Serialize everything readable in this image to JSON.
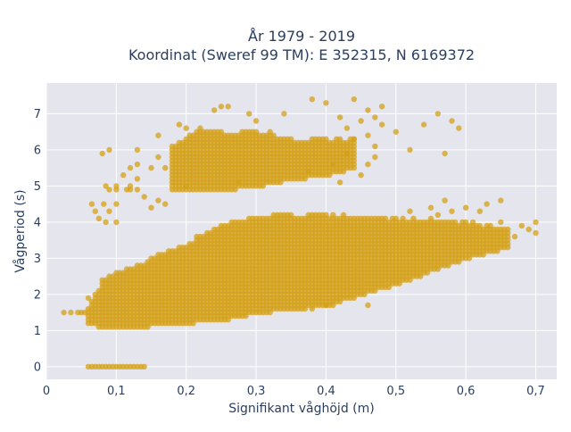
{
  "chart_data": {
    "type": "scatter",
    "title_line1": "År 1979 - 2019",
    "title_line2": "Koordinat (Sweref 99 TM): E 352315, N 6169372",
    "xlabel": "Signifikant våghöjd (m)",
    "ylabel": "Vågperiod (s)",
    "xlim": [
      0,
      0.73
    ],
    "ylim": [
      -0.35,
      7.85
    ],
    "x_ticks": [
      0,
      0.1,
      0.2,
      0.3,
      0.4,
      0.5,
      0.6,
      0.7
    ],
    "x_tick_labels": [
      "0",
      "0,1",
      "0,2",
      "0,3",
      "0,4",
      "0,5",
      "0,6",
      "0,7"
    ],
    "y_ticks": [
      0,
      1,
      2,
      3,
      4,
      5,
      6,
      7
    ],
    "y_tick_labels": [
      "0",
      "1",
      "2",
      "3",
      "4",
      "5",
      "6",
      "7"
    ],
    "grid": true,
    "marker_color": "#d4a017",
    "plot_bg": "#e5e5ee",
    "grid_color": "#ffffff",
    "x_step": 0.005,
    "main_band": {
      "lower": [
        [
          0.06,
          1.2
        ],
        [
          0.08,
          1.1
        ],
        [
          0.12,
          1.1
        ],
        [
          0.18,
          1.2
        ],
        [
          0.25,
          1.3
        ],
        [
          0.3,
          1.5
        ],
        [
          0.4,
          1.7
        ],
        [
          0.5,
          2.3
        ],
        [
          0.6,
          3.0
        ],
        [
          0.66,
          3.3
        ]
      ],
      "upper": [
        [
          0.06,
          1.6
        ],
        [
          0.08,
          2.4
        ],
        [
          0.1,
          2.6
        ],
        [
          0.15,
          3.0
        ],
        [
          0.2,
          3.4
        ],
        [
          0.25,
          3.9
        ],
        [
          0.3,
          4.1
        ],
        [
          0.35,
          4.2
        ],
        [
          0.4,
          4.2
        ],
        [
          0.5,
          4.1
        ],
        [
          0.6,
          4.0
        ],
        [
          0.66,
          3.8
        ]
      ]
    },
    "upper_band": {
      "lower": [
        [
          0.18,
          4.9
        ],
        [
          0.25,
          4.9
        ],
        [
          0.3,
          5.0
        ],
        [
          0.35,
          5.2
        ],
        [
          0.4,
          5.3
        ],
        [
          0.44,
          5.5
        ]
      ],
      "upper": [
        [
          0.18,
          6.1
        ],
        [
          0.22,
          6.6
        ],
        [
          0.25,
          6.5
        ],
        [
          0.3,
          6.5
        ],
        [
          0.35,
          6.3
        ],
        [
          0.4,
          6.3
        ],
        [
          0.44,
          6.3
        ]
      ]
    },
    "zero_row": {
      "y": 0,
      "x_from": 0.06,
      "x_to": 0.14
    },
    "extra_points": [
      [
        0.025,
        1.5
      ],
      [
        0.035,
        1.5
      ],
      [
        0.045,
        1.5
      ],
      [
        0.05,
        1.5
      ],
      [
        0.055,
        1.5
      ],
      [
        0.06,
        1.9
      ],
      [
        0.082,
        4.5
      ],
      [
        0.07,
        4.3
      ],
      [
        0.065,
        4.5
      ],
      [
        0.075,
        4.1
      ],
      [
        0.085,
        5.0
      ],
      [
        0.09,
        4.9
      ],
      [
        0.1,
        4.9
      ],
      [
        0.1,
        4.5
      ],
      [
        0.1,
        4.0
      ],
      [
        0.09,
        4.3
      ],
      [
        0.1,
        5.0
      ],
      [
        0.11,
        5.3
      ],
      [
        0.115,
        4.9
      ],
      [
        0.12,
        5.0
      ],
      [
        0.12,
        4.9
      ],
      [
        0.13,
        4.9
      ],
      [
        0.13,
        5.2
      ],
      [
        0.14,
        4.7
      ],
      [
        0.15,
        4.4
      ],
      [
        0.15,
        5.5
      ],
      [
        0.16,
        4.6
      ],
      [
        0.16,
        5.8
      ],
      [
        0.17,
        5.5
      ],
      [
        0.17,
        4.5
      ],
      [
        0.08,
        5.9
      ],
      [
        0.09,
        6.0
      ],
      [
        0.085,
        4.0
      ],
      [
        0.12,
        5.5
      ],
      [
        0.13,
        5.6
      ],
      [
        0.13,
        6.0
      ],
      [
        0.16,
        6.4
      ],
      [
        0.19,
        6.7
      ],
      [
        0.2,
        6.6
      ],
      [
        0.2,
        5.0
      ],
      [
        0.24,
        7.1
      ],
      [
        0.25,
        7.2
      ],
      [
        0.26,
        7.2
      ],
      [
        0.29,
        7.0
      ],
      [
        0.3,
        6.8
      ],
      [
        0.32,
        6.5
      ],
      [
        0.34,
        7.0
      ],
      [
        0.38,
        7.4
      ],
      [
        0.4,
        7.3
      ],
      [
        0.42,
        6.9
      ],
      [
        0.43,
        6.6
      ],
      [
        0.44,
        7.4
      ],
      [
        0.44,
        6.3
      ],
      [
        0.45,
        6.8
      ],
      [
        0.46,
        7.1
      ],
      [
        0.46,
        6.4
      ],
      [
        0.47,
        6.9
      ],
      [
        0.48,
        7.2
      ],
      [
        0.48,
        6.7
      ],
      [
        0.5,
        6.5
      ],
      [
        0.52,
        6.0
      ],
      [
        0.54,
        6.7
      ],
      [
        0.56,
        7.0
      ],
      [
        0.57,
        5.9
      ],
      [
        0.58,
        6.8
      ],
      [
        0.59,
        6.6
      ],
      [
        0.38,
        1.6
      ],
      [
        0.4,
        1.7
      ],
      [
        0.41,
        1.7
      ],
      [
        0.46,
        1.7
      ],
      [
        0.42,
        5.1
      ],
      [
        0.45,
        5.3
      ],
      [
        0.46,
        5.6
      ],
      [
        0.47,
        5.8
      ],
      [
        0.47,
        6.1
      ],
      [
        0.62,
        4.3
      ],
      [
        0.63,
        4.5
      ],
      [
        0.65,
        4.6
      ],
      [
        0.67,
        3.6
      ],
      [
        0.68,
        3.9
      ],
      [
        0.69,
        3.8
      ],
      [
        0.7,
        3.7
      ],
      [
        0.7,
        4.0
      ],
      [
        0.65,
        4.0
      ],
      [
        0.6,
        4.4
      ],
      [
        0.58,
        4.3
      ],
      [
        0.56,
        4.2
      ],
      [
        0.55,
        4.4
      ],
      [
        0.52,
        4.3
      ],
      [
        0.57,
        4.6
      ]
    ]
  }
}
